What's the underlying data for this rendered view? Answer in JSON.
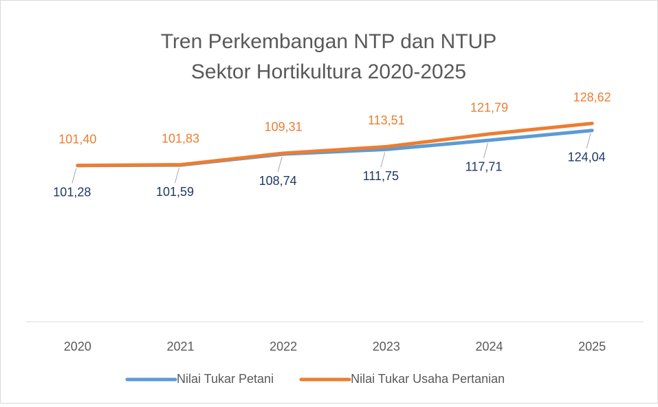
{
  "chart_data": {
    "type": "line",
    "title": "Tren Perkembangan NTP dan NTUP",
    "subtitle": "Sektor Hortikultura 2020-2025",
    "categories": [
      "2020",
      "2021",
      "2022",
      "2023",
      "2024",
      "2025"
    ],
    "series": [
      {
        "name": "Nilai Tukar Petani",
        "color": "#5b9bd5",
        "label_color": "#1f3864",
        "values": [
          101.28,
          101.59,
          108.74,
          111.75,
          117.71,
          124.04
        ],
        "value_labels": [
          "101,28",
          "101,59",
          "108,74",
          "111,75",
          "117,71",
          "124,04"
        ],
        "label_position": "below"
      },
      {
        "name": "Nilai Tukar Usaha Pertanian",
        "color": "#ed7d31",
        "label_color": "#ed7d31",
        "values": [
          101.4,
          101.83,
          109.31,
          113.51,
          121.79,
          128.62
        ],
        "value_labels": [
          "101,40",
          "101,83",
          "109,31",
          "113,51",
          "121,79",
          "128,62"
        ],
        "label_position": "above"
      }
    ],
    "ylim": [
      0,
      140
    ],
    "legend": "bottom"
  }
}
